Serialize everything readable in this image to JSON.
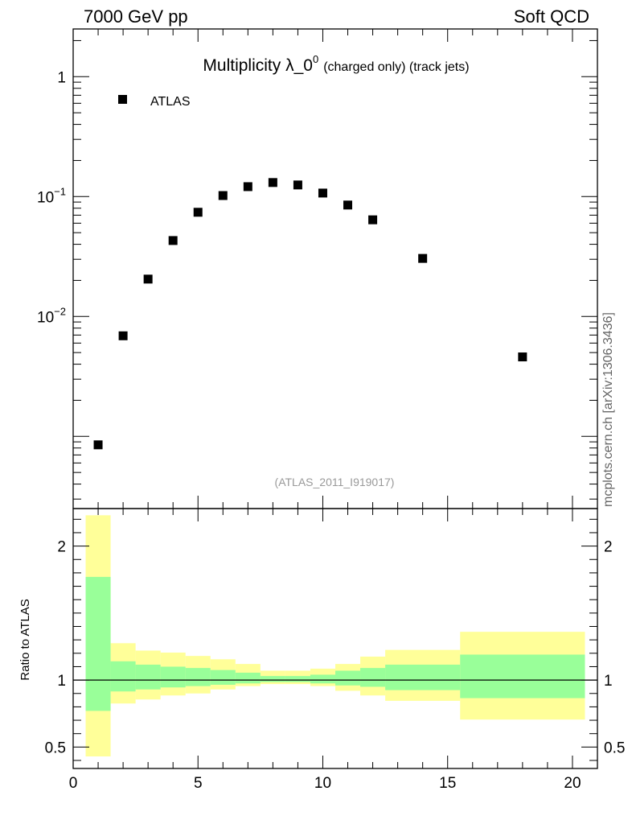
{
  "header": {
    "left_label": "7000 GeV pp",
    "right_label": "Soft QCD",
    "side_label": "mcplots.cern.ch [arXiv:1306.3436]"
  },
  "colors": {
    "green_band": "#99ff99",
    "yellow_band": "#ffff99",
    "marker": "#000000",
    "watermark": "#999999"
  },
  "chart_data": [
    {
      "type": "scatter",
      "title_main": "Multiplicity λ_0",
      "title_sup": "0",
      "title_sub": "(charged only) (track jets)",
      "analysis_label": "(ATLAS_2011_I919017)",
      "yscale": "log",
      "ylim": [
        0.00025,
        2.5
      ],
      "xlim": [
        0,
        21
      ],
      "y_ticks": [
        {
          "value": 1,
          "label": "1"
        },
        {
          "value": 0.1,
          "label": "10",
          "exp": "−1"
        },
        {
          "value": 0.01,
          "label": "10",
          "exp": "−2"
        }
      ],
      "legend": {
        "position": "top-left",
        "entries": [
          "ATLAS"
        ]
      },
      "series": [
        {
          "name": "ATLAS",
          "x": [
            1,
            2,
            3,
            4,
            5,
            6,
            7,
            8,
            9,
            10,
            11,
            12,
            14,
            18
          ],
          "y": [
            0.00085,
            0.0069,
            0.0205,
            0.043,
            0.074,
            0.102,
            0.121,
            0.131,
            0.125,
            0.107,
            0.085,
            0.064,
            0.0305,
            0.0046
          ]
        }
      ]
    },
    {
      "type": "area",
      "ylabel": "Ratio to ATLAS",
      "yscale": "linear",
      "ylim": [
        0.34,
        2.28
      ],
      "xlim": [
        0,
        21
      ],
      "y_ticks": [
        {
          "value": 2,
          "label": "2"
        },
        {
          "value": 1,
          "label": "1"
        },
        {
          "value": 0.5,
          "label": "0.5"
        }
      ],
      "x_ticks": [
        {
          "value": 0,
          "label": "0"
        },
        {
          "value": 5,
          "label": "5"
        },
        {
          "value": 10,
          "label": "10"
        },
        {
          "value": 15,
          "label": "15"
        },
        {
          "value": 20,
          "label": "20"
        }
      ],
      "reference_line": 1,
      "bands": [
        {
          "x0": 0.5,
          "x1": 1.5,
          "green": [
            0.77,
            1.77
          ],
          "yellow": [
            0.43,
            2.23
          ]
        },
        {
          "x0": 1.5,
          "x1": 2.5,
          "green": [
            0.915,
            1.14
          ],
          "yellow": [
            0.825,
            1.275
          ]
        },
        {
          "x0": 2.5,
          "x1": 3.5,
          "green": [
            0.93,
            1.115
          ],
          "yellow": [
            0.855,
            1.22
          ]
        },
        {
          "x0": 3.5,
          "x1": 4.5,
          "green": [
            0.945,
            1.1
          ],
          "yellow": [
            0.885,
            1.205
          ]
        },
        {
          "x0": 4.5,
          "x1": 5.5,
          "green": [
            0.955,
            1.09
          ],
          "yellow": [
            0.9,
            1.18
          ]
        },
        {
          "x0": 5.5,
          "x1": 6.5,
          "green": [
            0.965,
            1.075
          ],
          "yellow": [
            0.93,
            1.155
          ]
        },
        {
          "x0": 6.5,
          "x1": 7.5,
          "green": [
            0.975,
            1.055
          ],
          "yellow": [
            0.955,
            1.12
          ]
        },
        {
          "x0": 7.5,
          "x1": 8.5,
          "green": [
            0.985,
            1.03
          ],
          "yellow": [
            0.97,
            1.07
          ]
        },
        {
          "x0": 8.5,
          "x1": 9.5,
          "green": [
            0.985,
            1.03
          ],
          "yellow": [
            0.97,
            1.07
          ]
        },
        {
          "x0": 9.5,
          "x1": 10.5,
          "green": [
            0.975,
            1.04
          ],
          "yellow": [
            0.955,
            1.085
          ]
        },
        {
          "x0": 10.5,
          "x1": 11.5,
          "green": [
            0.96,
            1.07
          ],
          "yellow": [
            0.92,
            1.12
          ]
        },
        {
          "x0": 11.5,
          "x1": 12.5,
          "green": [
            0.95,
            1.09
          ],
          "yellow": [
            0.885,
            1.175
          ]
        },
        {
          "x0": 12.5,
          "x1": 15.5,
          "green": [
            0.925,
            1.115
          ],
          "yellow": [
            0.845,
            1.225
          ]
        },
        {
          "x0": 15.5,
          "x1": 20.5,
          "green": [
            0.865,
            1.19
          ],
          "yellow": [
            0.705,
            1.36
          ]
        }
      ]
    }
  ]
}
